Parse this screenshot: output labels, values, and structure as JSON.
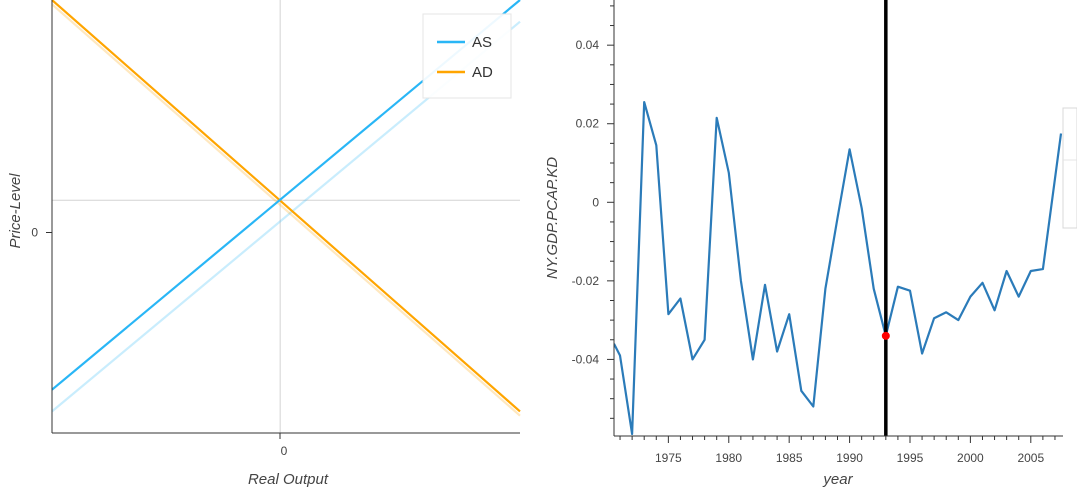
{
  "chart_data": [
    {
      "type": "line",
      "title": "",
      "xlabel": "Real Output",
      "ylabel": "Price-Level",
      "xlim": [
        -1.0,
        1.0
      ],
      "ylim": [
        -1.0,
        1.0
      ],
      "x_ticks": [
        {
          "value": 0,
          "label": "0"
        }
      ],
      "y_ticks": [
        {
          "value": 0,
          "label": "0"
        }
      ],
      "reference_lines": {
        "x": -0.025,
        "y": 0.075
      },
      "legend_position": "top-right",
      "series": [
        {
          "name": "AS",
          "color": "#29b6f6",
          "x": [
            -1.0,
            1.0
          ],
          "y": [
            -0.8,
            1.0
          ],
          "legend": true,
          "opacity": 1
        },
        {
          "name": "AD",
          "color": "#ffa500",
          "x": [
            -1.0,
            1.0
          ],
          "y": [
            1.0,
            -0.9
          ],
          "legend": true,
          "opacity": 1
        },
        {
          "name": "",
          "color": "#29b6f6",
          "x": [
            -1.0,
            1.0
          ],
          "y": [
            -0.9,
            0.9
          ],
          "legend": false,
          "opacity": 0.25
        },
        {
          "name": "",
          "color": "#ffa500",
          "x": [
            -1.0,
            1.0
          ],
          "y": [
            0.98,
            -0.92
          ],
          "legend": false,
          "opacity": 0.25
        }
      ]
    },
    {
      "type": "line",
      "title": "",
      "xlabel": "year",
      "ylabel": "NY.GDP.PCAP.KD",
      "xlim": [
        1970.5,
        2007.5
      ],
      "ylim": [
        -0.0595,
        0.0515
      ],
      "x_ticks": [
        1975,
        1980,
        1985,
        1990,
        1995,
        2000,
        2005
      ],
      "y_ticks": [
        {
          "value": 0.04,
          "label": "0.04"
        },
        {
          "value": 0.02,
          "label": "0.02"
        },
        {
          "value": 0,
          "label": "0"
        },
        {
          "value": -0.02,
          "label": "-0.02"
        },
        {
          "value": -0.04,
          "label": "-0.04"
        }
      ],
      "vertical_line": 1993,
      "highlight_point": {
        "x": 1993,
        "y": -0.034,
        "color": "#ff0000"
      },
      "series": [
        {
          "name": "",
          "color": "#2b7bb9",
          "x": [
            1970.5,
            1971,
            1972,
            1973,
            1974,
            1975,
            1976,
            1977,
            1978,
            1979,
            1980,
            1981,
            1982,
            1983,
            1984,
            1985,
            1986,
            1987,
            1988,
            1989,
            1990,
            1991,
            1992,
            1993,
            1994,
            1995,
            1996,
            1997,
            1998,
            1999,
            2000,
            2001,
            2002,
            2003,
            2004,
            2005,
            2006,
            2007.5
          ],
          "y": [
            -0.036,
            -0.039,
            -0.059,
            0.0255,
            0.0145,
            -0.0285,
            -0.0245,
            -0.04,
            -0.035,
            0.0215,
            0.0075,
            -0.02,
            -0.04,
            -0.021,
            -0.038,
            -0.0285,
            -0.048,
            -0.052,
            -0.022,
            -0.004,
            0.0135,
            -0.0015,
            -0.022,
            -0.034,
            -0.0215,
            -0.0225,
            -0.0385,
            -0.0295,
            -0.028,
            -0.03,
            -0.024,
            -0.0205,
            -0.0275,
            -0.0175,
            -0.024,
            -0.0175,
            -0.017,
            0.0175
          ]
        }
      ]
    }
  ]
}
